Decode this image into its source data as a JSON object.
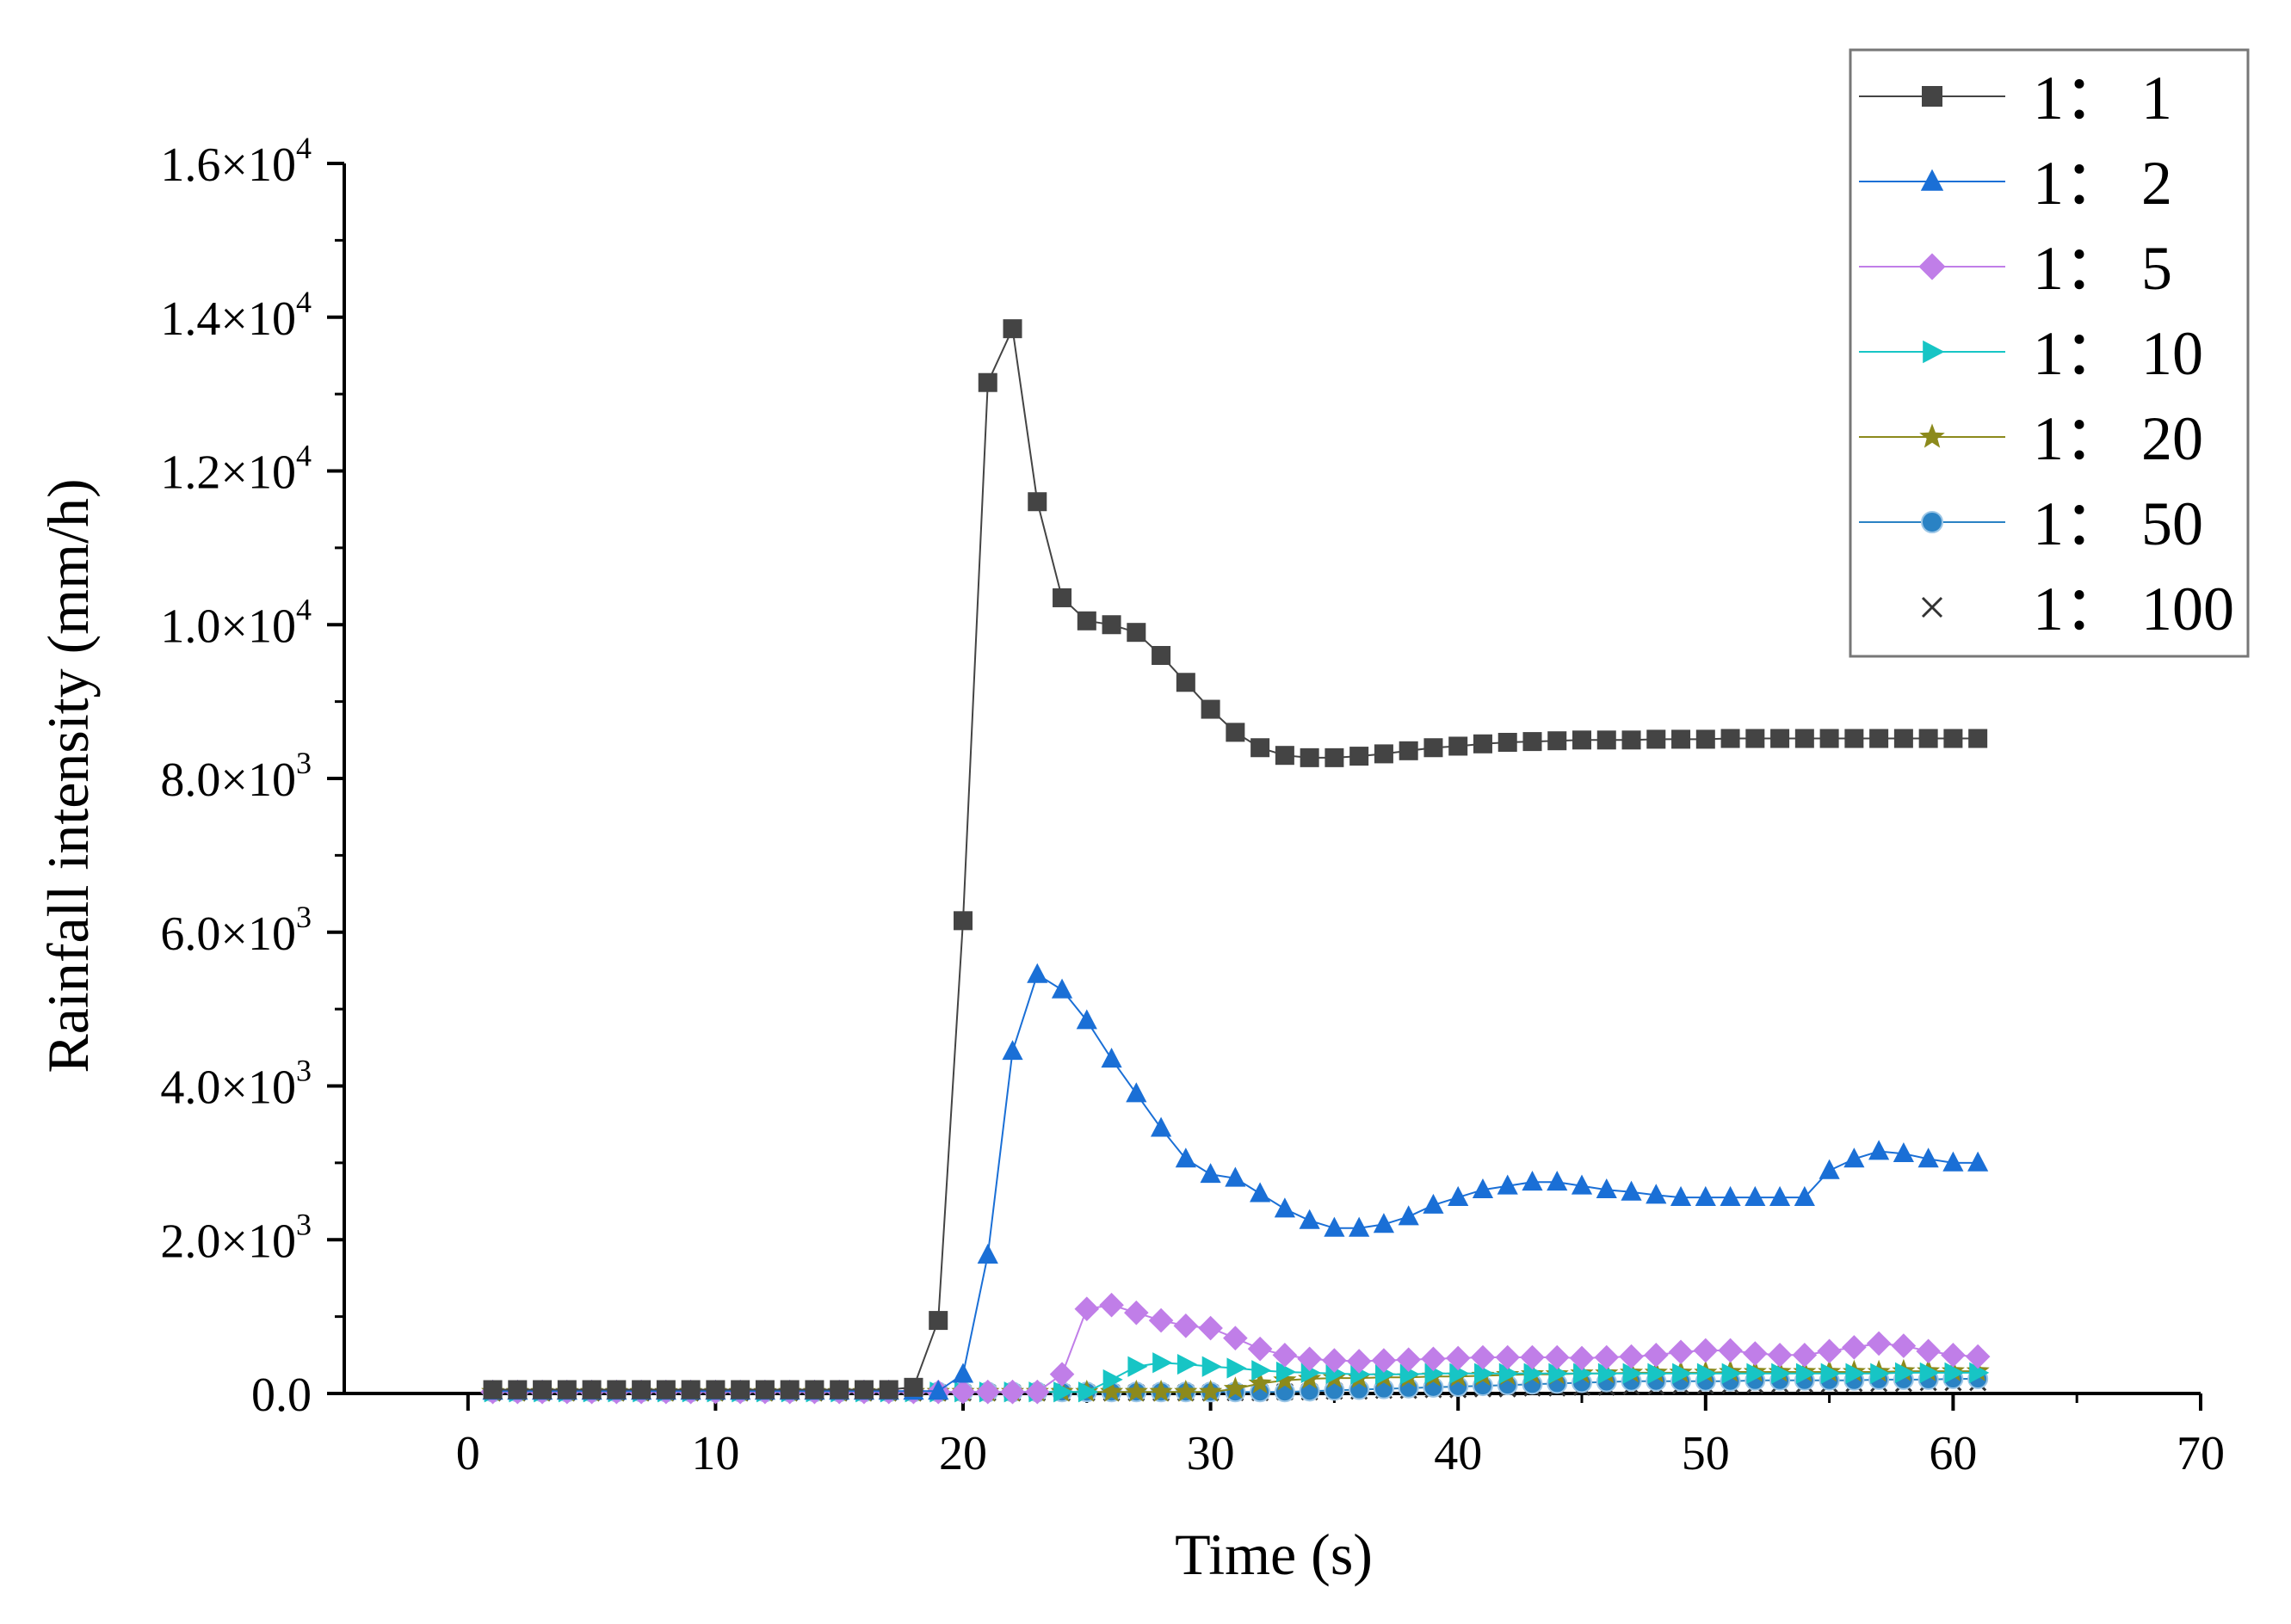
{
  "chart_data": {
    "type": "line",
    "xlabel": "Time (s)",
    "ylabel": "Rainfall intensity (mm/h)",
    "xlim": [
      -5,
      70
    ],
    "ylim": [
      0,
      16000
    ],
    "xticks": [
      0,
      10,
      20,
      30,
      40,
      50,
      60,
      70
    ],
    "xtick_labels": [
      "0",
      "10",
      "20",
      "30",
      "40",
      "50",
      "60",
      "70"
    ],
    "yticks": [
      {
        "value": 0,
        "mantissa": "0.0",
        "exponent": ""
      },
      {
        "value": 2000,
        "mantissa": "2.0×10",
        "exponent": "3"
      },
      {
        "value": 4000,
        "mantissa": "4.0×10",
        "exponent": "3"
      },
      {
        "value": 6000,
        "mantissa": "6.0×10",
        "exponent": "3"
      },
      {
        "value": 8000,
        "mantissa": "8.0×10",
        "exponent": "3"
      },
      {
        "value": 10000,
        "mantissa": "1.0×10",
        "exponent": "4"
      },
      {
        "value": 12000,
        "mantissa": "1.2×10",
        "exponent": "4"
      },
      {
        "value": 14000,
        "mantissa": "1.4×10",
        "exponent": "4"
      },
      {
        "value": 16000,
        "mantissa": "1.6×10",
        "exponent": "4"
      }
    ],
    "legend_position": "top-right",
    "x": [
      1,
      2,
      3,
      4,
      5,
      6,
      7,
      8,
      9,
      10,
      11,
      12,
      13,
      14,
      15,
      16,
      17,
      18,
      19,
      20,
      21,
      22,
      23,
      24,
      25,
      26,
      27,
      28,
      29,
      30,
      31,
      32,
      33,
      34,
      35,
      36,
      37,
      38,
      39,
      40,
      41,
      42,
      43,
      44,
      45,
      46,
      47,
      48,
      49,
      50,
      51,
      52,
      53,
      54,
      55,
      56,
      57,
      58,
      59,
      60,
      61
    ],
    "series": [
      {
        "name": "1： 1",
        "color": "#444444",
        "marker": "square",
        "values": [
          50,
          50,
          50,
          50,
          50,
          50,
          50,
          50,
          50,
          50,
          50,
          50,
          50,
          50,
          50,
          50,
          50,
          80,
          950,
          6150,
          13150,
          13850,
          11600,
          10350,
          10050,
          10000,
          9900,
          9600,
          9250,
          8900,
          8600,
          8400,
          8300,
          8270,
          8270,
          8290,
          8320,
          8360,
          8400,
          8420,
          8450,
          8470,
          8480,
          8490,
          8500,
          8500,
          8500,
          8510,
          8510,
          8510,
          8520,
          8520,
          8520,
          8520,
          8520,
          8520,
          8520,
          8520,
          8520,
          8520,
          8520
        ]
      },
      {
        "name": "1： 2",
        "color": "#1a6fd6",
        "marker": "triangle-up",
        "values": [
          30,
          30,
          30,
          30,
          30,
          30,
          30,
          30,
          30,
          30,
          30,
          30,
          30,
          30,
          30,
          30,
          30,
          30,
          30,
          250,
          1800,
          4450,
          5450,
          5250,
          4850,
          4350,
          3900,
          3450,
          3050,
          2850,
          2800,
          2600,
          2400,
          2250,
          2150,
          2150,
          2200,
          2300,
          2450,
          2550,
          2650,
          2700,
          2750,
          2750,
          2700,
          2650,
          2620,
          2580,
          2550,
          2550,
          2550,
          2550,
          2550,
          2550,
          2900,
          3050,
          3150,
          3120,
          3050,
          3000,
          3000
        ]
      },
      {
        "name": "1： 5",
        "color": "#c07ee8",
        "marker": "diamond",
        "values": [
          20,
          20,
          20,
          20,
          20,
          20,
          20,
          20,
          20,
          20,
          20,
          20,
          20,
          20,
          20,
          20,
          20,
          20,
          20,
          20,
          20,
          20,
          20,
          250,
          1100,
          1150,
          1050,
          950,
          880,
          850,
          720,
          580,
          500,
          450,
          430,
          420,
          430,
          440,
          450,
          460,
          470,
          470,
          470,
          470,
          460,
          470,
          480,
          500,
          540,
          560,
          560,
          520,
          500,
          500,
          550,
          600,
          650,
          620,
          550,
          500,
          480
        ]
      },
      {
        "name": "1： 10",
        "color": "#17c5c5",
        "marker": "triangle-right",
        "values": [
          20,
          20,
          20,
          20,
          20,
          20,
          20,
          20,
          20,
          20,
          20,
          20,
          20,
          20,
          20,
          20,
          20,
          20,
          20,
          20,
          20,
          20,
          20,
          20,
          20,
          180,
          350,
          400,
          380,
          350,
          330,
          300,
          280,
          270,
          260,
          250,
          250,
          250,
          260,
          260,
          260,
          260,
          260,
          260,
          260,
          260,
          260,
          260,
          260,
          260,
          260,
          260,
          260,
          260,
          260,
          260,
          260,
          270,
          270,
          270,
          270
        ]
      },
      {
        "name": "1： 20",
        "color": "#8c8a1c",
        "marker": "star",
        "values": [
          20,
          20,
          20,
          20,
          20,
          20,
          20,
          20,
          20,
          20,
          20,
          20,
          20,
          20,
          20,
          20,
          20,
          20,
          20,
          20,
          20,
          20,
          20,
          20,
          20,
          20,
          20,
          20,
          20,
          20,
          60,
          130,
          170,
          190,
          200,
          200,
          210,
          210,
          220,
          220,
          230,
          240,
          250,
          250,
          260,
          260,
          270,
          270,
          270,
          270,
          280,
          280,
          280,
          280,
          280,
          280,
          280,
          290,
          290,
          290,
          290
        ]
      },
      {
        "name": "1： 50",
        "color": "#2a82c4",
        "marker": "circle",
        "values": [
          20,
          20,
          20,
          20,
          20,
          20,
          20,
          20,
          20,
          20,
          20,
          20,
          20,
          20,
          20,
          20,
          20,
          20,
          20,
          20,
          20,
          20,
          20,
          20,
          20,
          20,
          20,
          20,
          20,
          20,
          20,
          20,
          20,
          30,
          40,
          50,
          60,
          70,
          80,
          90,
          100,
          110,
          120,
          130,
          140,
          150,
          160,
          160,
          160,
          160,
          160,
          170,
          170,
          170,
          170,
          170,
          180,
          180,
          180,
          190,
          190
        ]
      },
      {
        "name": "1： 100",
        "color": "#333333",
        "marker": "x",
        "values": [
          10,
          10,
          10,
          10,
          10,
          10,
          10,
          10,
          10,
          10,
          10,
          10,
          10,
          10,
          10,
          10,
          10,
          10,
          10,
          10,
          10,
          10,
          10,
          10,
          10,
          10,
          10,
          10,
          10,
          10,
          10,
          10,
          20,
          20,
          30,
          30,
          40,
          40,
          50,
          50,
          60,
          60,
          70,
          70,
          80,
          80,
          90,
          90,
          100,
          100,
          110,
          110,
          120,
          120,
          120,
          130,
          130,
          130,
          140,
          140,
          140
        ]
      }
    ]
  }
}
